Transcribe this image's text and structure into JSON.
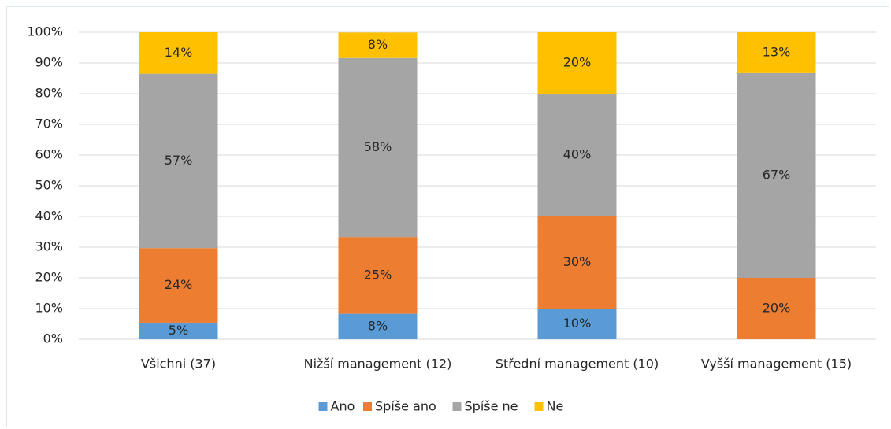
{
  "chart_data": {
    "type": "stacked_bar",
    "categories": [
      "Všichni (37)",
      "Nižší management (12)",
      "Střední management (10)",
      "Vyšší management (15)"
    ],
    "series": [
      {
        "name": "Ano",
        "color": "#5b9bd5",
        "values": [
          5.4,
          8.3,
          10,
          0
        ],
        "value_labels": [
          "5%",
          "8%",
          "10%",
          null
        ]
      },
      {
        "name": "Spíše ano",
        "color": "#ed7d31",
        "values": [
          24.3,
          25,
          30,
          20
        ],
        "value_labels": [
          "24%",
          "25%",
          "30%",
          "20%"
        ]
      },
      {
        "name": "Spíše ne",
        "color": "#a5a5a5",
        "values": [
          56.8,
          58.3,
          40,
          66.7
        ],
        "value_labels": [
          "57%",
          "58%",
          "40%",
          "67%"
        ]
      },
      {
        "name": "Ne",
        "color": "#ffc000",
        "values": [
          13.5,
          8.3,
          20,
          13.3
        ],
        "value_labels": [
          "14%",
          "8%",
          "20%",
          "13%"
        ]
      }
    ],
    "ylim": [
      0,
      100
    ],
    "yticks": [
      {
        "value": 0,
        "label": "0%"
      },
      {
        "value": 10,
        "label": "10%"
      },
      {
        "value": 20,
        "label": "20%"
      },
      {
        "value": 30,
        "label": "30%"
      },
      {
        "value": 40,
        "label": "40%"
      },
      {
        "value": 50,
        "label": "50%"
      },
      {
        "value": 60,
        "label": "60%"
      },
      {
        "value": 70,
        "label": "70%"
      },
      {
        "value": 80,
        "label": "80%"
      },
      {
        "value": 90,
        "label": "90%"
      },
      {
        "value": 100,
        "label": "100%"
      }
    ],
    "grid": true,
    "legend": "bottom"
  }
}
